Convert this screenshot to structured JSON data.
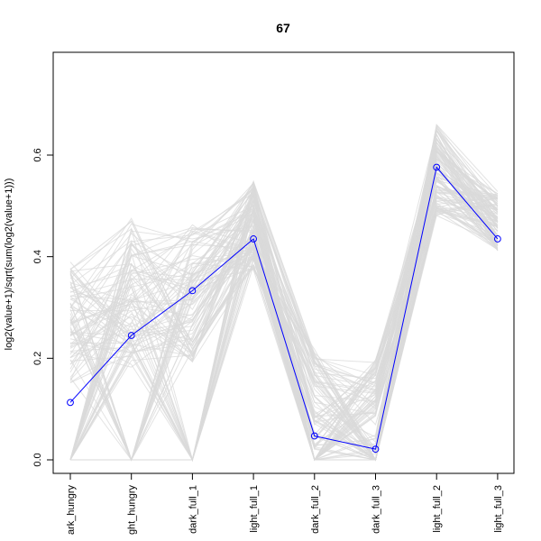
{
  "chart_data": {
    "type": "line",
    "title": "67",
    "xlabel": "",
    "ylabel": "log2(value+1)/sqrt(sum(log2(value+1)))",
    "categories": [
      "dark_hungry",
      "light_hungry",
      "dark_full_1",
      "light_full_1",
      "dark_full_2",
      "dark_full_3",
      "light_full_2",
      "light_full_3"
    ],
    "category_labels_visible": [
      "ark_hungry",
      "ght_hungry",
      "dark_full_1",
      "light_full_1",
      "dark_full_2",
      "dark_full_3",
      "light_full_2",
      "light_full_3"
    ],
    "yticks": [
      "0.0",
      "0.2",
      "0.4",
      "0.6"
    ],
    "ylim": [
      -0.025,
      0.775
    ],
    "grid": false,
    "series": [
      {
        "values": [
          0.113,
          0.245,
          0.333,
          0.435,
          0.047,
          0.021,
          0.576,
          0.435
        ],
        "color": "#0000ff",
        "highlight": true
      }
    ],
    "background_series_color": "#d9d9d9",
    "background_series_count": 120
  }
}
